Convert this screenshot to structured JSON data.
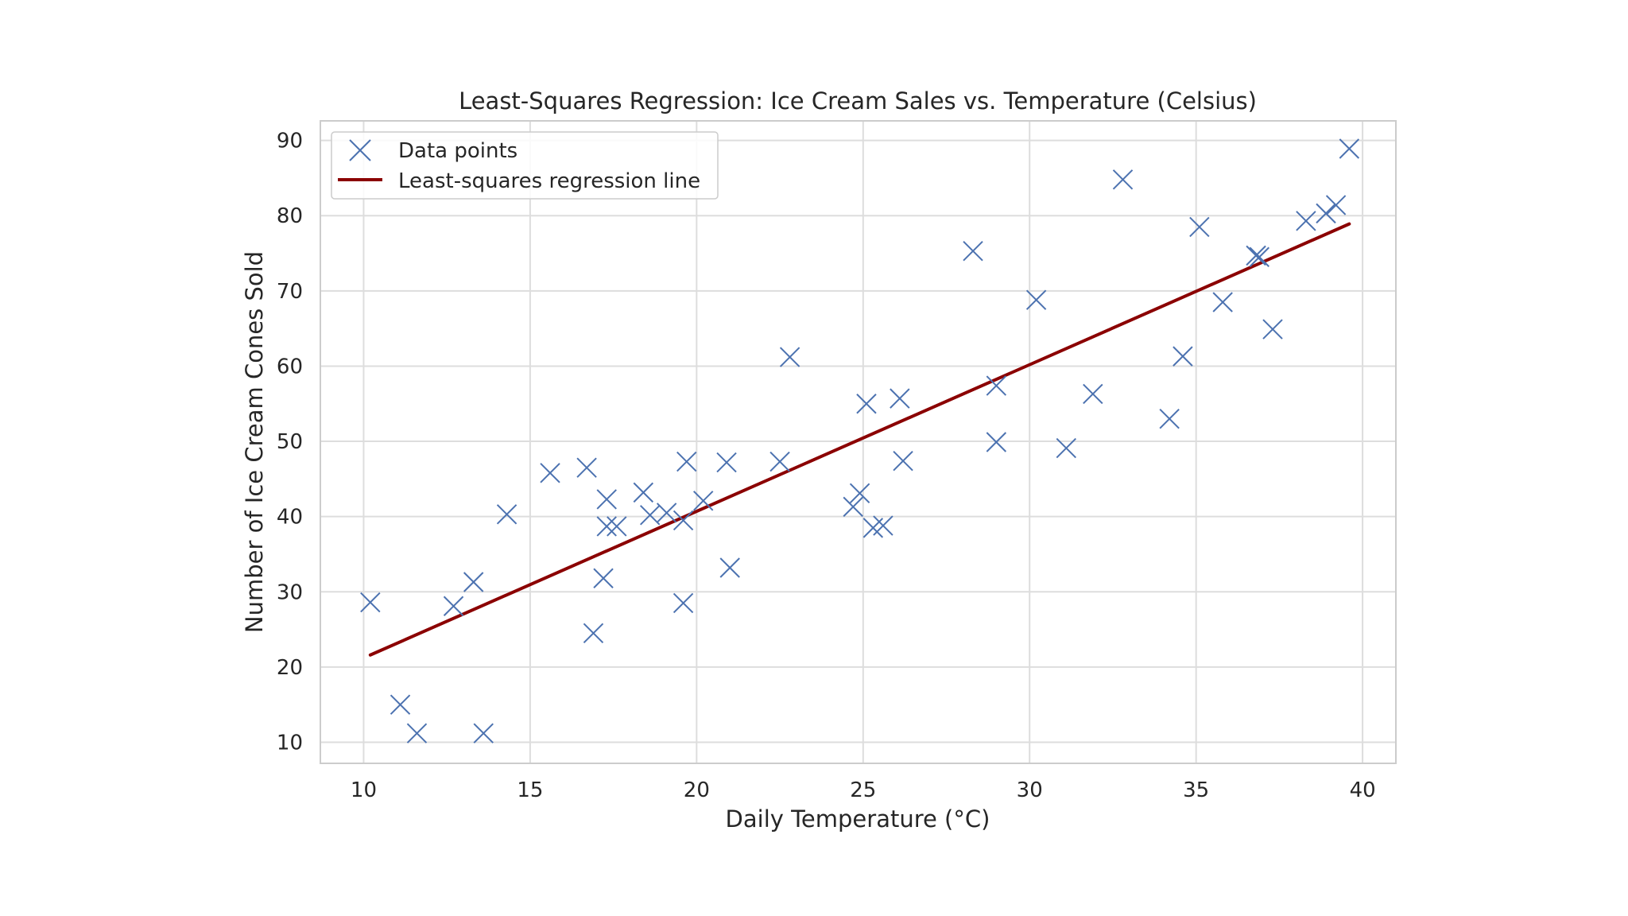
{
  "colors": {
    "points": "#4c72b0",
    "regression_line": "#8b0000",
    "grid": "#dddddd",
    "frame": "#cccccc",
    "background": "#ffffff",
    "text": "#262626"
  },
  "icons": {
    "point_marker": "x-marker-icon"
  },
  "chart_data": {
    "type": "scatter",
    "title": "Least-Squares Regression: Ice Cream Sales vs. Temperature (Celsius)",
    "xlabel": "Daily Temperature (°C)",
    "ylabel": "Number of Ice Cream Cones Sold",
    "xlim": [
      8.7,
      41
    ],
    "ylim": [
      7.2,
      92.6
    ],
    "xticks": [
      10,
      15,
      20,
      25,
      30,
      35,
      40
    ],
    "yticks": [
      10,
      20,
      30,
      40,
      50,
      60,
      70,
      80,
      90
    ],
    "grid": true,
    "legend": {
      "placement": "top-left",
      "entries": [
        "Data points",
        "Least-squares regression line"
      ]
    },
    "series": [
      {
        "name": "Data points",
        "type": "scatter",
        "marker": "x",
        "points": [
          [
            10.2,
            28.6
          ],
          [
            11.1,
            15.0
          ],
          [
            11.6,
            11.2
          ],
          [
            12.7,
            28.1
          ],
          [
            13.3,
            31.3
          ],
          [
            13.6,
            11.2
          ],
          [
            14.3,
            40.3
          ],
          [
            15.6,
            45.8
          ],
          [
            16.7,
            46.5
          ],
          [
            16.9,
            24.5
          ],
          [
            17.2,
            31.8
          ],
          [
            17.3,
            42.3
          ],
          [
            17.3,
            38.7
          ],
          [
            17.6,
            38.7
          ],
          [
            18.4,
            43.2
          ],
          [
            18.6,
            40.2
          ],
          [
            19.1,
            40.5
          ],
          [
            19.6,
            28.5
          ],
          [
            19.6,
            39.5
          ],
          [
            19.7,
            47.3
          ],
          [
            20.2,
            42.1
          ],
          [
            20.9,
            47.2
          ],
          [
            21.0,
            33.2
          ],
          [
            22.5,
            47.3
          ],
          [
            22.8,
            61.2
          ],
          [
            24.7,
            41.3
          ],
          [
            24.9,
            43.1
          ],
          [
            25.1,
            55.0
          ],
          [
            25.3,
            38.5
          ],
          [
            25.6,
            38.8
          ],
          [
            26.1,
            55.7
          ],
          [
            26.2,
            47.4
          ],
          [
            28.3,
            75.3
          ],
          [
            29.0,
            57.4
          ],
          [
            29.0,
            49.9
          ],
          [
            30.2,
            68.8
          ],
          [
            31.1,
            49.1
          ],
          [
            31.9,
            56.3
          ],
          [
            32.8,
            84.8
          ],
          [
            34.2,
            53.0
          ],
          [
            34.6,
            61.3
          ],
          [
            35.1,
            78.5
          ],
          [
            35.8,
            68.5
          ],
          [
            36.8,
            74.7
          ],
          [
            36.9,
            74.5
          ],
          [
            37.3,
            64.9
          ],
          [
            38.3,
            79.3
          ],
          [
            38.9,
            80.3
          ],
          [
            39.2,
            81.4
          ],
          [
            39.6,
            88.9
          ]
        ]
      },
      {
        "name": "Least-squares regression line",
        "type": "line",
        "x": [
          10.2,
          39.6
        ],
        "y": [
          21.6,
          78.9
        ]
      }
    ]
  }
}
